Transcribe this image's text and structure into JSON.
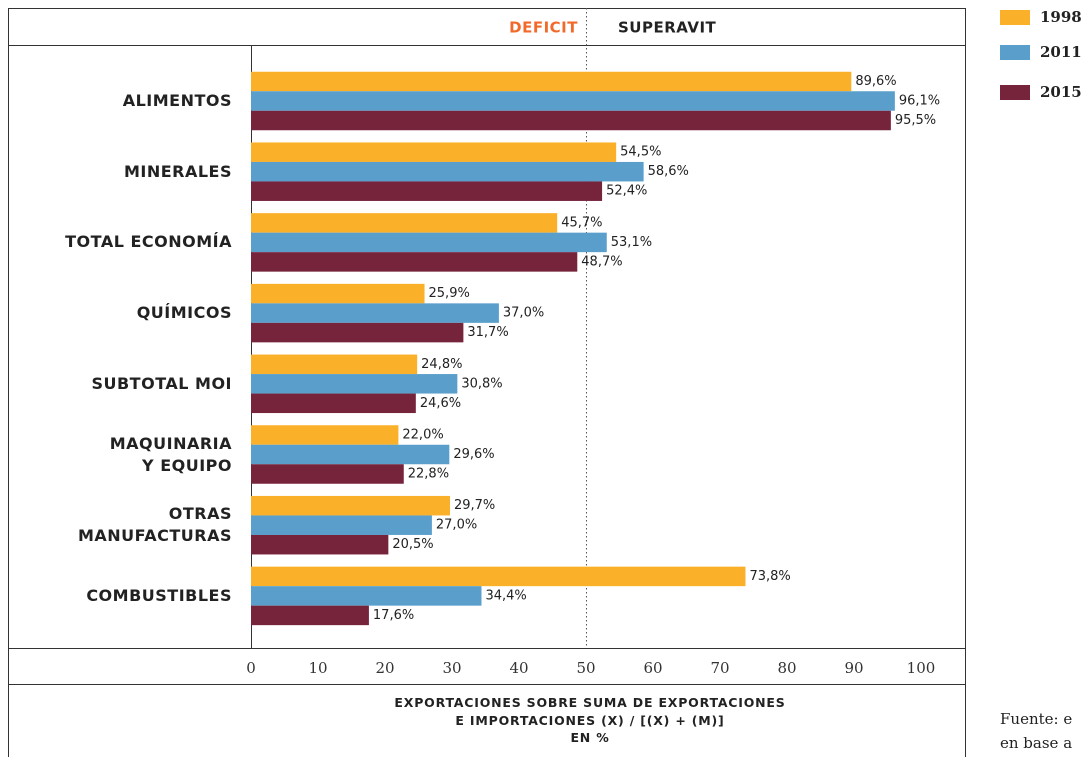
{
  "chart_data": {
    "type": "bar",
    "orientation": "horizontal",
    "deficit_label": "DEFICIT",
    "surplus_label": "SUPERAVIT",
    "threshold": 50,
    "x_label": "EXPORTACIONES SOBRE SUMA DE EXPORTACIONES\nE IMPORTACIONES (X) / [(X) + (M)]\nEN %",
    "source": [
      "Fuente: e",
      "en base a"
    ],
    "categories": [
      "ALIMENTOS",
      "MINERALES",
      "TOTAL ECONOMÍA",
      "QUÍMICOS",
      "SUBTOTAL MOI",
      "MAQUINARIA\nY EQUIPO",
      "OTRAS\nMANUFACTURAS",
      "COMBUSTIBLES"
    ],
    "series": [
      {
        "name": "1998",
        "color": "#fbb02a",
        "values": [
          89.6,
          54.5,
          45.7,
          25.9,
          24.8,
          22.0,
          29.7,
          73.8
        ],
        "value_labels": [
          "89,6%",
          "54,5%",
          "45,7%",
          "25,9%",
          "24,8%",
          "22,0%",
          "29,7%",
          "73,8%"
        ]
      },
      {
        "name": "2011",
        "color": "#5a9fcc",
        "values": [
          96.1,
          58.6,
          53.1,
          37.0,
          30.8,
          29.6,
          27.0,
          34.4
        ],
        "value_labels": [
          "96,1%",
          "58,6%",
          "53,1%",
          "37,0%",
          "30,8%",
          "29,6%",
          "27,0%",
          "34,4%"
        ]
      },
      {
        "name": "2015",
        "color": "#76243c",
        "values": [
          95.5,
          52.4,
          48.7,
          31.7,
          24.6,
          22.8,
          20.5,
          17.6
        ],
        "value_labels": [
          "95,5%",
          "52,4%",
          "48,7%",
          "31,7%",
          "24,6%",
          "22,8%",
          "20,5%",
          "17,6%"
        ]
      }
    ],
    "xlim": [
      0,
      100
    ],
    "xticks": [
      0,
      10,
      20,
      30,
      40,
      50,
      60,
      70,
      80,
      90,
      100
    ]
  }
}
